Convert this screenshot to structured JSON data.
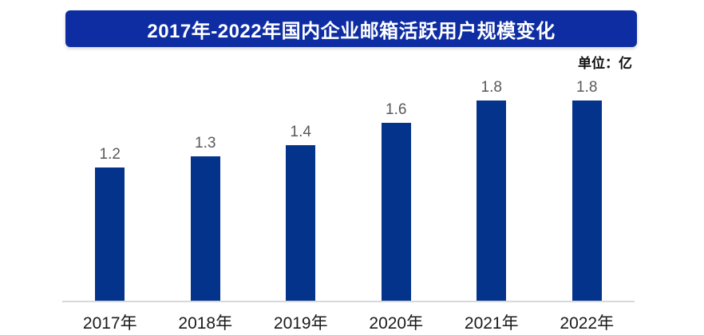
{
  "title": "2017年-2022年国内企业邮箱活跃用户规模变化",
  "unit_label": "单位：亿",
  "colors": {
    "background": "#ffffff",
    "title_bg": "#0e2da3",
    "title_text": "#ffffff",
    "bar": "#04338c",
    "value_label": "#595959",
    "tick_label": "#1a1a1a",
    "axis_line": "#d9d9d9"
  },
  "chart_data": {
    "type": "bar",
    "title": "2017年-2022年国内企业邮箱活跃用户规模变化",
    "categories": [
      "2017年",
      "2018年",
      "2019年",
      "2020年",
      "2021年",
      "2022年"
    ],
    "values": [
      1.2,
      1.3,
      1.4,
      1.6,
      1.8,
      1.8
    ],
    "data_labels": [
      "1.2",
      "1.3",
      "1.4",
      "1.6",
      "1.8",
      "1.8"
    ],
    "xlabel": "",
    "ylabel": "单位：亿",
    "ylim": [
      0,
      2.0
    ],
    "grid": false,
    "legend": false,
    "y_axis_visible": false,
    "x_axis_line_visible": true
  }
}
